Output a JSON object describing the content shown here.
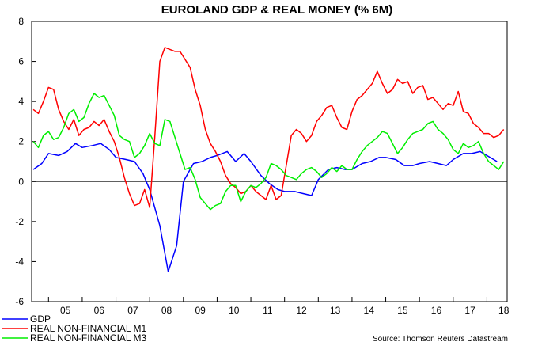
{
  "chart_data": {
    "type": "line",
    "title": "EUROLAND GDP & REAL MONEY (% 6M)",
    "source": "Source: Thomson Reuters Datastream",
    "ylim": [
      -6,
      8
    ],
    "y_ticks": [
      "8",
      "6",
      "4",
      "2",
      "0",
      "-2",
      "-4",
      "-6"
    ],
    "x_ticks": [
      "05",
      "06",
      "07",
      "08",
      "09",
      "10",
      "11",
      "12",
      "13",
      "14",
      "15",
      "16",
      "17",
      "18"
    ],
    "xlim": [
      2004.5,
      2018.6
    ],
    "grid": false,
    "zero_line": true,
    "legend_position": "bottom-left",
    "series": [
      {
        "name": "GDP",
        "color": "#0000ff",
        "x": [
          2004.55,
          2004.8,
          2005.0,
          2005.3,
          2005.55,
          2005.8,
          2006.0,
          2006.3,
          2006.55,
          2006.8,
          2007.0,
          2007.3,
          2007.55,
          2007.8,
          2008.0,
          2008.3,
          2008.55,
          2008.8,
          2009.0,
          2009.3,
          2009.55,
          2009.8,
          2010.0,
          2010.3,
          2010.55,
          2010.8,
          2011.0,
          2011.3,
          2011.55,
          2011.8,
          2012.0,
          2012.3,
          2012.55,
          2012.8,
          2013.0,
          2013.3,
          2013.55,
          2013.8,
          2014.0,
          2014.3,
          2014.55,
          2014.8,
          2015.0,
          2015.3,
          2015.55,
          2015.8,
          2016.0,
          2016.3,
          2016.55,
          2016.8,
          2017.0,
          2017.3,
          2017.55,
          2017.8,
          2018.0,
          2018.3
        ],
        "y": [
          0.6,
          0.9,
          1.4,
          1.3,
          1.5,
          1.9,
          1.7,
          1.8,
          1.9,
          1.6,
          1.2,
          1.1,
          1.0,
          0.4,
          -0.4,
          -2.2,
          -4.5,
          -3.2,
          0.0,
          0.9,
          1.0,
          1.2,
          1.3,
          1.5,
          1.0,
          1.4,
          1.0,
          0.3,
          -0.1,
          -0.4,
          -0.5,
          -0.5,
          -0.6,
          -0.7,
          0.1,
          0.6,
          0.7,
          0.6,
          0.6,
          0.9,
          1.0,
          1.2,
          1.2,
          1.1,
          0.8,
          0.8,
          0.9,
          1.0,
          0.9,
          0.8,
          1.1,
          1.4,
          1.4,
          1.5,
          1.3,
          1.0
        ]
      },
      {
        "name": "REAL NON-FINANCIAL M1",
        "color": "#ff0000",
        "x": [
          2004.55,
          2004.7,
          2004.85,
          2005.0,
          2005.15,
          2005.3,
          2005.45,
          2005.6,
          2005.75,
          2005.9,
          2006.05,
          2006.2,
          2006.35,
          2006.5,
          2006.65,
          2006.8,
          2006.95,
          2007.1,
          2007.25,
          2007.4,
          2007.55,
          2007.7,
          2007.85,
          2008.0,
          2008.15,
          2008.3,
          2008.45,
          2008.6,
          2008.75,
          2008.9,
          2009.05,
          2009.2,
          2009.35,
          2009.5,
          2009.65,
          2009.8,
          2009.95,
          2010.1,
          2010.25,
          2010.4,
          2010.55,
          2010.7,
          2010.85,
          2011.0,
          2011.15,
          2011.3,
          2011.45,
          2011.6,
          2011.75,
          2011.9,
          2012.05,
          2012.2,
          2012.35,
          2012.5,
          2012.65,
          2012.8,
          2012.95,
          2013.1,
          2013.25,
          2013.4,
          2013.55,
          2013.7,
          2013.85,
          2014.0,
          2014.15,
          2014.3,
          2014.45,
          2014.6,
          2014.75,
          2014.9,
          2015.05,
          2015.2,
          2015.35,
          2015.5,
          2015.65,
          2015.8,
          2015.95,
          2016.1,
          2016.25,
          2016.4,
          2016.55,
          2016.7,
          2016.85,
          2017.0,
          2017.15,
          2017.3,
          2017.45,
          2017.6,
          2017.75,
          2017.9,
          2018.05,
          2018.2,
          2018.35,
          2018.5
        ],
        "y": [
          3.6,
          3.4,
          4.0,
          4.7,
          4.6,
          3.6,
          3.0,
          2.6,
          3.1,
          2.3,
          2.6,
          2.7,
          3.0,
          2.8,
          3.1,
          2.5,
          2.0,
          1.2,
          0.2,
          -0.6,
          -1.2,
          -1.1,
          -0.4,
          -1.3,
          2.2,
          6.0,
          6.7,
          6.6,
          6.5,
          6.5,
          6.1,
          5.7,
          4.6,
          3.8,
          2.6,
          1.9,
          1.5,
          1.0,
          0.3,
          -0.1,
          -0.3,
          -0.6,
          -0.5,
          -0.2,
          -0.5,
          -0.7,
          -0.9,
          -0.2,
          -0.9,
          -0.7,
          0.8,
          2.3,
          2.6,
          2.4,
          2.0,
          2.3,
          3.0,
          3.3,
          3.7,
          3.8,
          3.2,
          2.7,
          2.6,
          3.5,
          4.1,
          4.3,
          4.6,
          4.9,
          5.5,
          4.9,
          4.4,
          4.6,
          5.1,
          4.9,
          5.0,
          4.4,
          4.7,
          4.8,
          4.1,
          4.2,
          3.9,
          3.6,
          3.9,
          3.8,
          4.5,
          3.5,
          3.4,
          2.9,
          2.7,
          2.4,
          2.4,
          2.2,
          2.3,
          2.6
        ]
      },
      {
        "name": "REAL NON-FINANCIAL M3",
        "color": "#00ee00",
        "x": [
          2004.55,
          2004.7,
          2004.85,
          2005.0,
          2005.15,
          2005.3,
          2005.45,
          2005.6,
          2005.75,
          2005.9,
          2006.05,
          2006.2,
          2006.35,
          2006.5,
          2006.65,
          2006.8,
          2006.95,
          2007.1,
          2007.25,
          2007.4,
          2007.55,
          2007.7,
          2007.85,
          2008.0,
          2008.15,
          2008.3,
          2008.45,
          2008.6,
          2008.75,
          2008.9,
          2009.05,
          2009.2,
          2009.35,
          2009.5,
          2009.65,
          2009.8,
          2009.95,
          2010.1,
          2010.25,
          2010.4,
          2010.55,
          2010.7,
          2010.85,
          2011.0,
          2011.15,
          2011.3,
          2011.45,
          2011.6,
          2011.75,
          2011.9,
          2012.05,
          2012.2,
          2012.35,
          2012.5,
          2012.65,
          2012.8,
          2012.95,
          2013.1,
          2013.25,
          2013.4,
          2013.55,
          2013.7,
          2013.85,
          2014.0,
          2014.15,
          2014.3,
          2014.45,
          2014.6,
          2014.75,
          2014.9,
          2015.05,
          2015.2,
          2015.35,
          2015.5,
          2015.65,
          2015.8,
          2015.95,
          2016.1,
          2016.25,
          2016.4,
          2016.55,
          2016.7,
          2016.85,
          2017.0,
          2017.15,
          2017.3,
          2017.45,
          2017.6,
          2017.75,
          2017.9,
          2018.05,
          2018.2,
          2018.35,
          2018.5
        ],
        "y": [
          2.0,
          1.7,
          2.3,
          2.5,
          2.1,
          2.2,
          2.7,
          3.4,
          3.6,
          3.0,
          3.2,
          3.9,
          4.4,
          4.2,
          4.3,
          3.8,
          3.3,
          2.3,
          2.1,
          2.0,
          1.2,
          1.4,
          1.8,
          2.4,
          1.9,
          1.8,
          3.1,
          3.0,
          2.2,
          1.4,
          0.6,
          0.7,
          0.1,
          -0.8,
          -1.1,
          -1.4,
          -1.2,
          -1.1,
          -0.5,
          -0.2,
          -0.2,
          -1.0,
          -0.5,
          -0.2,
          -0.3,
          -0.1,
          0.2,
          0.9,
          0.8,
          0.6,
          0.3,
          0.2,
          0.1,
          0.4,
          0.6,
          0.7,
          0.5,
          0.2,
          0.4,
          0.7,
          0.5,
          0.8,
          0.6,
          0.6,
          1.1,
          1.5,
          1.8,
          2.0,
          2.2,
          2.5,
          2.4,
          1.9,
          1.4,
          1.7,
          2.1,
          2.4,
          2.5,
          2.6,
          2.9,
          3.0,
          2.6,
          2.4,
          2.1,
          1.6,
          1.4,
          1.9,
          1.7,
          1.8,
          2.0,
          1.4,
          1.0,
          0.8,
          0.6,
          1.0
        ]
      }
    ]
  }
}
